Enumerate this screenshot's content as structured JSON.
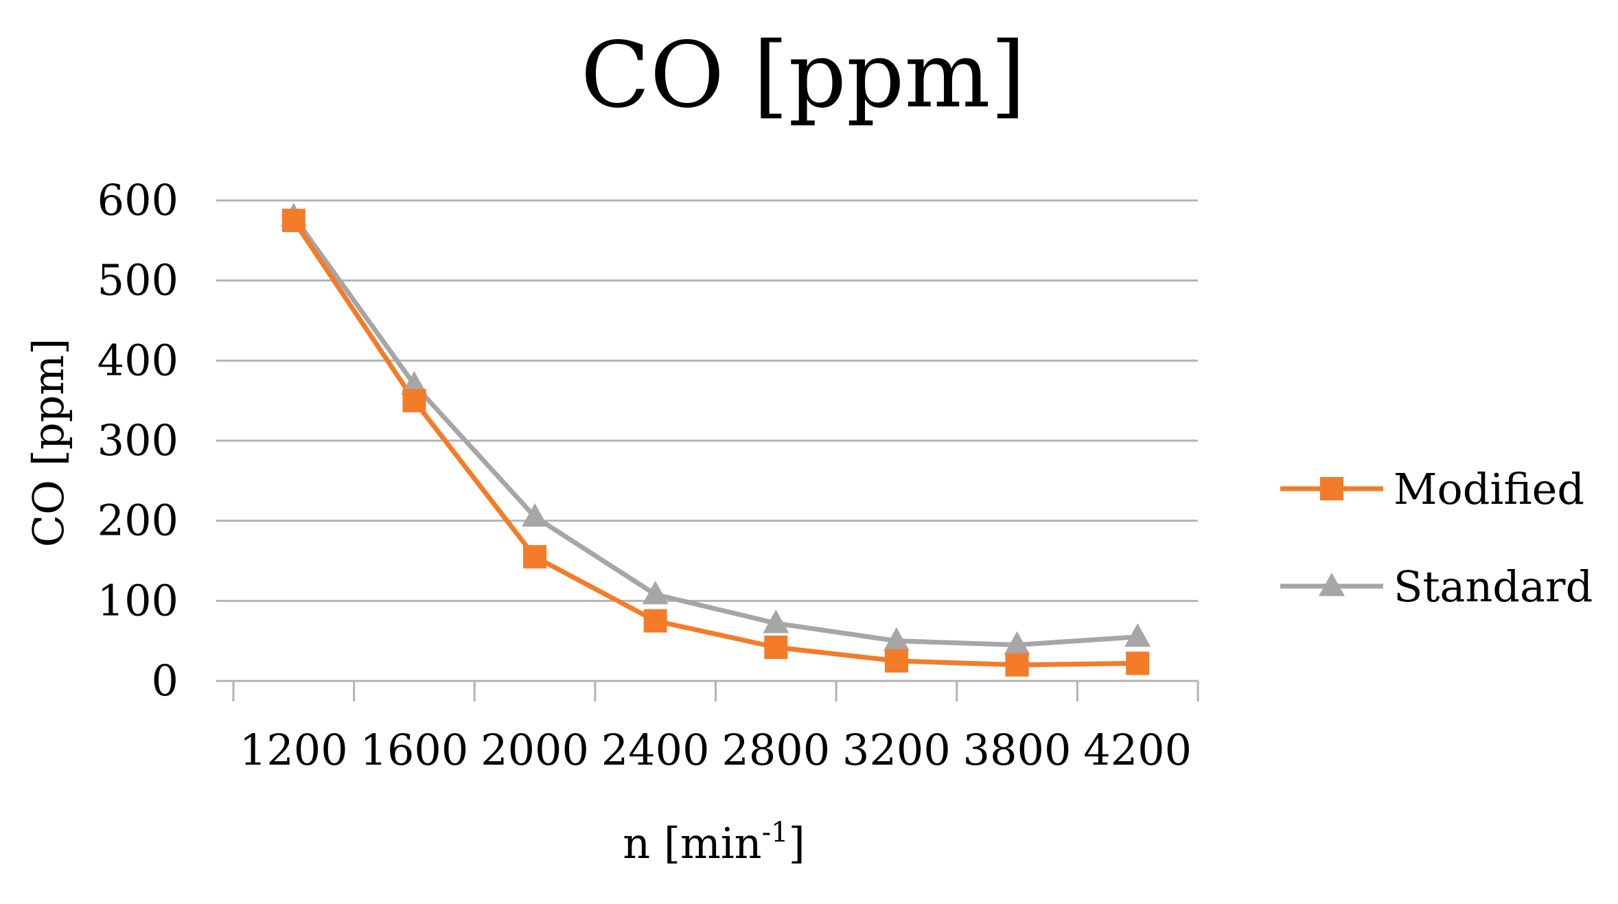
{
  "chart_data": {
    "type": "line",
    "title": "CO [ppm]",
    "xlabel": "n [min-1]",
    "xlabel_base": "n [min",
    "xlabel_sup": "-1",
    "xlabel_close": "]",
    "ylabel": "CO [ppm]",
    "categories": [
      "1200",
      "1600",
      "2000",
      "2400",
      "2800",
      "3200",
      "3800",
      "4200"
    ],
    "ylim": [
      0,
      600
    ],
    "yticks": [
      "0",
      "100",
      "200",
      "300",
      "400",
      "500",
      "600"
    ],
    "grid": true,
    "legend_position": "right",
    "series": [
      {
        "name": "Modified",
        "color": "#f47b28",
        "marker": "square",
        "values": [
          575,
          350,
          155,
          75,
          42,
          25,
          20,
          22
        ]
      },
      {
        "name": "Standard",
        "color": "#a6a6a6",
        "marker": "triangle",
        "values": [
          580,
          370,
          205,
          108,
          72,
          50,
          45,
          55
        ]
      }
    ]
  }
}
